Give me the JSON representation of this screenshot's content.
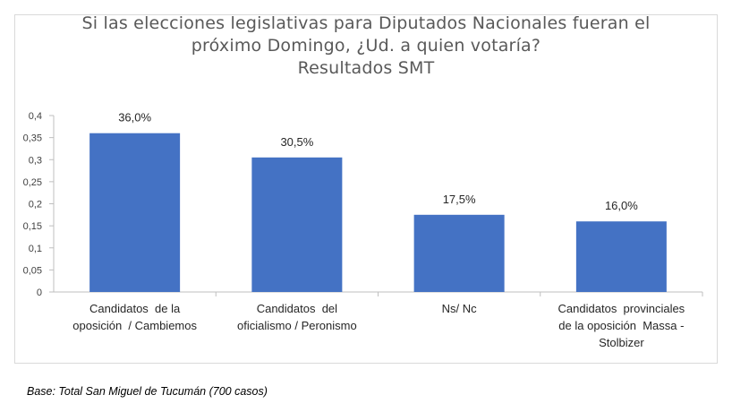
{
  "chart_data": {
    "type": "bar",
    "title_lines": [
      "Si las elecciones legislativas para Diputados Nacionales fueran el",
      "próximo Domingo, ¿Ud. a quien votaría?",
      "Resultados SMT"
    ],
    "categories": [
      [
        "Candidatos  de la",
        "oposición  / Cambiemos"
      ],
      [
        "Candidatos  del",
        "oficialismo / Peronismo"
      ],
      [
        "Ns/ Nc"
      ],
      [
        "Candidatos  provinciales",
        "de la oposición  Massa -",
        "Stolbizer"
      ]
    ],
    "values": [
      0.36,
      0.305,
      0.175,
      0.16
    ],
    "data_labels": [
      "36,0%",
      "30,5%",
      "17,5%",
      "16,0%"
    ],
    "y_ticks": [
      "0",
      "0,05",
      "0,1",
      "0,15",
      "0,2",
      "0,25",
      "0,3",
      "0,35",
      "0,4"
    ],
    "ylim": [
      0,
      0.4
    ],
    "xlabel": "",
    "ylabel": "",
    "grid": false,
    "legend": "none",
    "bar_color": "#4472C4"
  },
  "footnote": "Base: Total San Miguel de Tucumán (700 casos)"
}
